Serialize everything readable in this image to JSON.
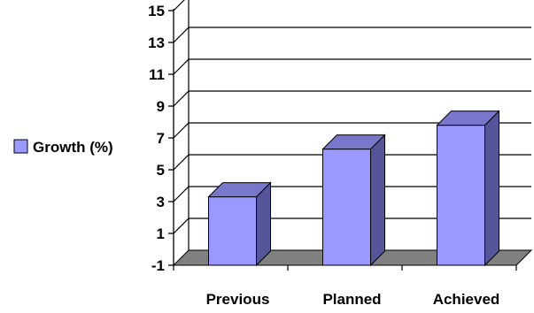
{
  "chart_data": {
    "type": "bar",
    "style": "3d-column",
    "categories": [
      "Previous",
      "Planned",
      "Achieved"
    ],
    "series": [
      {
        "name": "Growth (%)",
        "values": [
          3.3,
          6.3,
          7.8
        ]
      }
    ],
    "yticks": [
      "-1",
      "1",
      "3",
      "5",
      "7",
      "9",
      "11",
      "13",
      "15"
    ],
    "ylim": [
      -1,
      16
    ],
    "grid": true,
    "legend_position": "left",
    "colors": {
      "bar_front": "#9999ff",
      "bar_side": "#555599",
      "bar_top": "#7777cc",
      "floor": "#808080",
      "grid": "#000000"
    }
  }
}
